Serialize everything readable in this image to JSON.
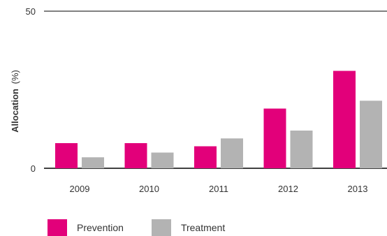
{
  "chart_data": {
    "type": "bar",
    "categories": [
      "2009",
      "2010",
      "2011",
      "2012",
      "2013"
    ],
    "series": [
      {
        "name": "Prevention",
        "color": "#e2007a",
        "values": [
          8,
          8,
          7,
          19,
          31
        ]
      },
      {
        "name": "Treatment",
        "color": "#b3b3b3",
        "values": [
          3.5,
          5,
          9.5,
          12,
          21.5
        ]
      }
    ],
    "ylabel_main": "Allocation",
    "ylabel_unit": "(%)",
    "ylim": [
      0,
      50
    ],
    "yticks": [
      "0",
      "50"
    ],
    "grid": "top line at 50",
    "legend_position": "bottom-left"
  }
}
